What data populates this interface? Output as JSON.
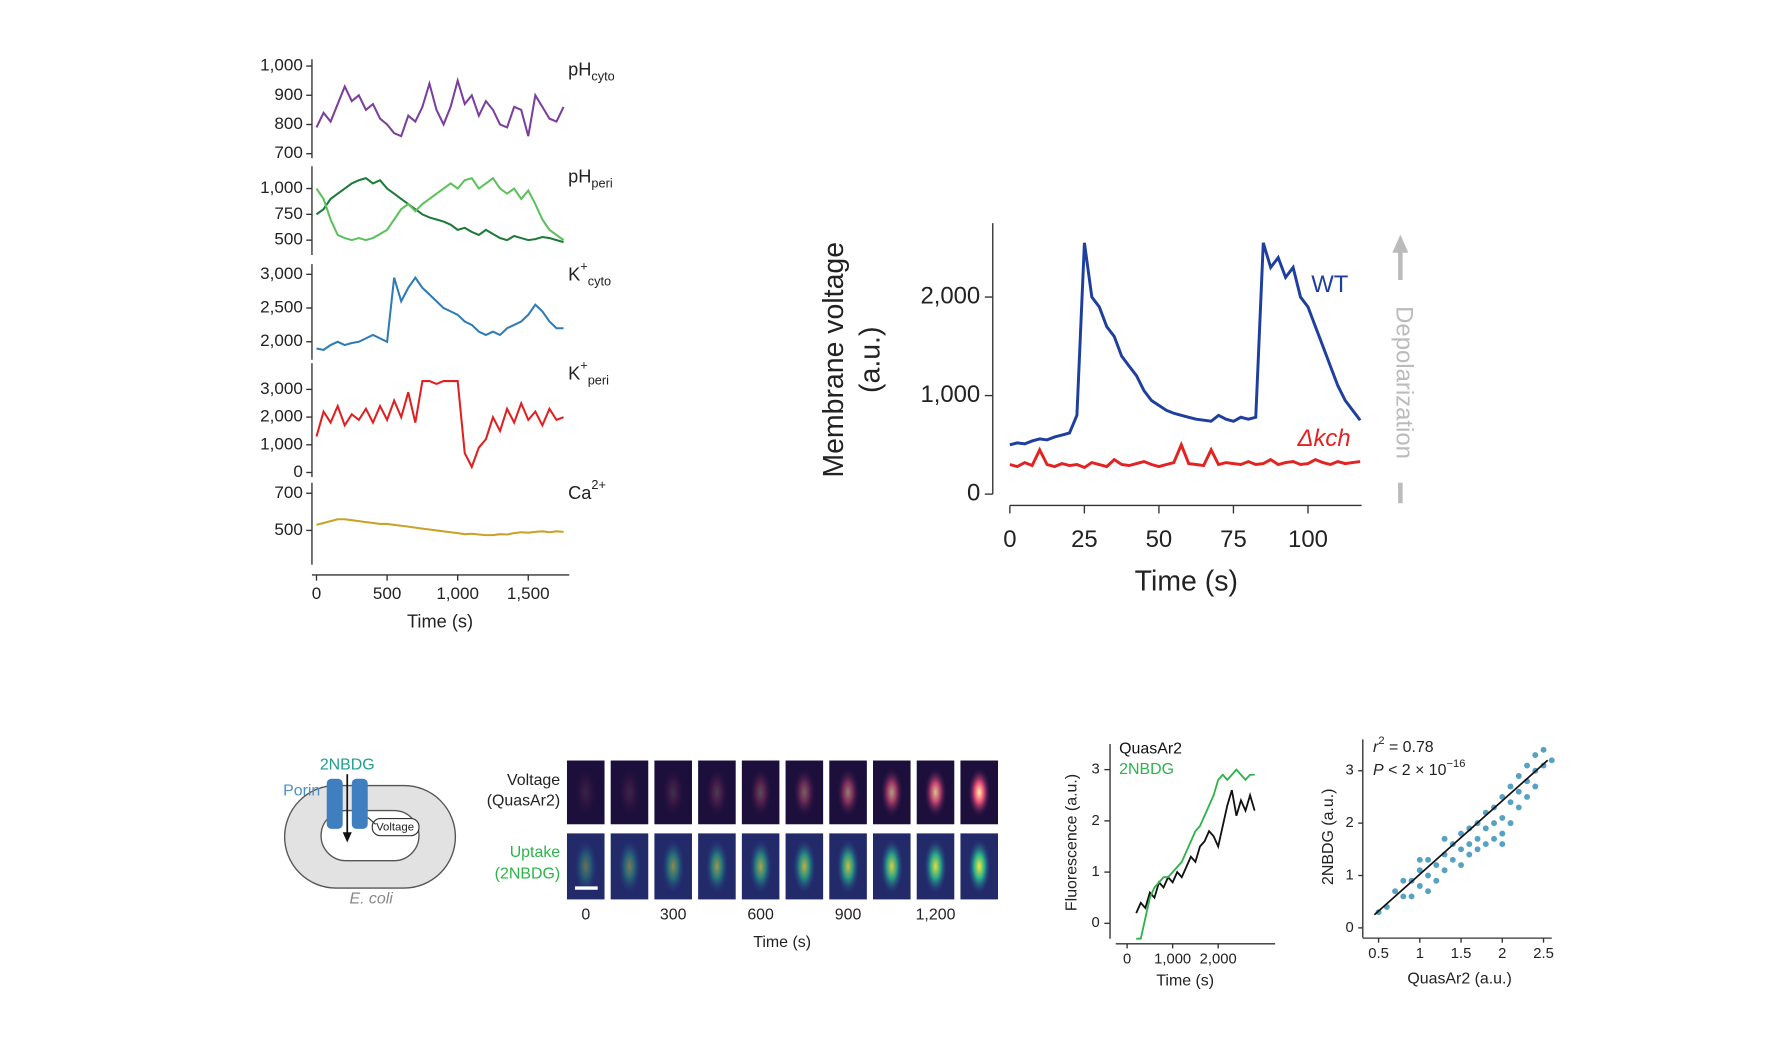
{
  "chart_data": [
    {
      "type": "line",
      "xlabel": "Time (s)",
      "x": [
        0,
        50,
        100,
        150,
        200,
        250,
        300,
        350,
        400,
        450,
        500,
        550,
        600,
        650,
        700,
        750,
        800,
        850,
        900,
        950,
        1000,
        1050,
        1100,
        1150,
        1200,
        1250,
        1300,
        1350,
        1400,
        1450,
        1500,
        1550,
        1600,
        1650,
        1700,
        1750
      ],
      "xlim": [
        0,
        1750
      ],
      "xticks": [
        0,
        500,
        {
          "value": 1000,
          "label": "1,000"
        },
        {
          "value": 1500,
          "label": "1,500"
        }
      ],
      "panels": [
        {
          "label": "pH",
          "label_sub": "cyto",
          "ylim": [
            700,
            1000
          ],
          "yticks": [
            700,
            800,
            900,
            {
              "value": 1000,
              "label": "1,000"
            }
          ],
          "series": [
            {
              "color": "#7b3f9e",
              "values": [
                790,
                840,
                810,
                870,
                930,
                880,
                900,
                850,
                870,
                820,
                800,
                770,
                760,
                830,
                810,
                860,
                940,
                850,
                800,
                860,
                950,
                870,
                900,
                830,
                880,
                850,
                800,
                790,
                860,
                850,
                760,
                900,
                860,
                820,
                810,
                860
              ]
            }
          ]
        },
        {
          "label": "pH",
          "label_sub": "peri",
          "ylim": [
            400,
            1150
          ],
          "yticks": [
            500,
            750,
            {
              "value": 1000,
              "label": "1,000"
            }
          ],
          "series": [
            {
              "color": "#1e7a3a",
              "values": [
                750,
                800,
                900,
                950,
                1000,
                1050,
                1080,
                1100,
                1050,
                1080,
                1000,
                950,
                900,
                850,
                800,
                750,
                720,
                700,
                680,
                650,
                600,
                620,
                580,
                550,
                600,
                560,
                520,
                500,
                540,
                520,
                500,
                510,
                530,
                520,
                500,
                480
              ]
            },
            {
              "color": "#5cc15c",
              "values": [
                1000,
                900,
                700,
                550,
                520,
                500,
                520,
                500,
                520,
                560,
                600,
                700,
                800,
                850,
                780,
                850,
                900,
                950,
                1000,
                1050,
                1000,
                1080,
                1100,
                1000,
                1050,
                1100,
                1000,
                950,
                1000,
                900,
                980,
                850,
                700,
                600,
                550,
                500
              ]
            }
          ]
        },
        {
          "label": "K",
          "label_sup": "+",
          "label_sub": "cyto",
          "ylim": [
            1800,
            3050
          ],
          "yticks": [
            {
              "value": 2000,
              "label": "2,000"
            },
            {
              "value": 2500,
              "label": "2,500"
            },
            {
              "value": 3000,
              "label": "3,000"
            }
          ],
          "series": [
            {
              "color": "#2f7bb5",
              "values": [
                1900,
                1880,
                1950,
                2000,
                1950,
                1980,
                2000,
                2050,
                2100,
                2050,
                2000,
                2950,
                2600,
                2800,
                2950,
                2800,
                2700,
                2600,
                2500,
                2450,
                2400,
                2300,
                2250,
                2150,
                2100,
                2150,
                2100,
                2200,
                2250,
                2300,
                2400,
                2550,
                2450,
                2300,
                2200,
                2200
              ]
            }
          ]
        },
        {
          "label": "K",
          "label_sup": "+",
          "label_sub": "peri",
          "ylim": [
            0,
            3700
          ],
          "yticks": [
            0,
            {
              "value": 1000,
              "label": "1,000"
            },
            {
              "value": 2000,
              "label": "2,000"
            },
            {
              "value": 3000,
              "label": "3,000"
            }
          ],
          "series": [
            {
              "color": "#e02020",
              "values": [
                1300,
                2200,
                1800,
                2400,
                1700,
                2100,
                1900,
                2300,
                1800,
                2400,
                1900,
                2600,
                2000,
                2900,
                1800,
                3300,
                3300,
                3200,
                3300,
                3300,
                3300,
                700,
                200,
                900,
                1200,
                2000,
                1500,
                2300,
                1800,
                2500,
                1900,
                2200,
                1700,
                2300,
                1900,
                2000
              ]
            }
          ]
        },
        {
          "label": "Ca",
          "label_sup": "2+",
          "ylim": [
            340,
            720
          ],
          "yticks": [
            500,
            700
          ],
          "series": [
            {
              "color": "#c9a227",
              "values": [
                530,
                540,
                550,
                560,
                560,
                555,
                550,
                545,
                540,
                535,
                535,
                530,
                525,
                520,
                515,
                510,
                505,
                500,
                495,
                490,
                485,
                480,
                482,
                478,
                475,
                475,
                480,
                478,
                485,
                490,
                488,
                492,
                495,
                490,
                495,
                492
              ]
            }
          ]
        }
      ]
    },
    {
      "type": "line",
      "xlabel": "Time (s)",
      "ylabel": [
        "Membrane voltage",
        "(a.u.)"
      ],
      "annotation": "Depolarization",
      "x": [
        0,
        2.5,
        5,
        7.5,
        10,
        12.5,
        15,
        17.5,
        20,
        22.5,
        25,
        27.5,
        30,
        32.5,
        35,
        37.5,
        40,
        42.5,
        45,
        47.5,
        50,
        52.5,
        55,
        57.5,
        60,
        62.5,
        65,
        67.5,
        70,
        72.5,
        75,
        77.5,
        80,
        82.5,
        85,
        87.5,
        90,
        92.5,
        95,
        97.5,
        100,
        102.5,
        105,
        107.5,
        110,
        112.5,
        115,
        117.5
      ],
      "xlim": [
        0,
        118
      ],
      "xticks": [
        0,
        25,
        50,
        75,
        100
      ],
      "ylim": [
        0,
        2750
      ],
      "yticks": [
        0,
        {
          "value": 1000,
          "label": "1,000"
        },
        {
          "value": 2000,
          "label": "2,000"
        }
      ],
      "series": [
        {
          "name": "WT",
          "color": "#1f3f9e",
          "values": [
            500,
            520,
            510,
            540,
            560,
            550,
            580,
            600,
            620,
            800,
            2550,
            2000,
            1900,
            1700,
            1600,
            1400,
            1300,
            1200,
            1050,
            950,
            900,
            850,
            820,
            800,
            780,
            760,
            750,
            740,
            800,
            760,
            740,
            780,
            760,
            780,
            2550,
            2300,
            2400,
            2200,
            2300,
            2000,
            1900,
            1700,
            1500,
            1300,
            1100,
            950,
            850,
            750
          ]
        },
        {
          "name": "Δkch",
          "color": "#e32222",
          "values": [
            300,
            280,
            320,
            290,
            450,
            300,
            280,
            310,
            290,
            300,
            270,
            320,
            300,
            280,
            350,
            300,
            290,
            310,
            330,
            300,
            280,
            300,
            320,
            500,
            310,
            300,
            290,
            450,
            300,
            320,
            310,
            300,
            330,
            300,
            310,
            350,
            300,
            320,
            330,
            300,
            310,
            350,
            320,
            300,
            330,
            310,
            320,
            330
          ]
        }
      ]
    },
    {
      "type": "line",
      "xlabel": "Time (s)",
      "ylabel": "Fluorescence (a.u.)",
      "x": [
        200,
        300,
        400,
        500,
        600,
        700,
        800,
        900,
        1000,
        1100,
        1200,
        1300,
        1400,
        1500,
        1600,
        1700,
        1800,
        1900,
        2000,
        2100,
        2200,
        2300,
        2400,
        2500,
        2600,
        2700,
        2800
      ],
      "xlim": [
        -250,
        3250
      ],
      "xticks": [
        0,
        {
          "value": 1000,
          "label": "1,000"
        },
        {
          "value": 2000,
          "label": "2,000"
        }
      ],
      "ylim": [
        -0.3,
        3.5
      ],
      "yticks": [
        0,
        1,
        2,
        3
      ],
      "series": [
        {
          "name": "QuasAr2",
          "color": "#111111",
          "values": [
            0.2,
            0.4,
            0.3,
            0.6,
            0.5,
            0.8,
            0.7,
            0.9,
            0.8,
            1.0,
            0.9,
            1.1,
            1.3,
            1.2,
            1.5,
            1.6,
            1.8,
            1.7,
            1.5,
            1.9,
            2.3,
            2.6,
            2.1,
            2.4,
            2.2,
            2.5,
            2.2
          ]
        },
        {
          "name": "2NBDG",
          "color": "#2db34a",
          "values": [
            -0.3,
            -0.3,
            0.1,
            0.5,
            0.7,
            0.8,
            0.9,
            0.9,
            1.0,
            1.1,
            1.2,
            1.4,
            1.6,
            1.8,
            1.9,
            2.1,
            2.3,
            2.5,
            2.8,
            2.9,
            2.8,
            2.9,
            3.0,
            2.9,
            2.8,
            2.9,
            2.9
          ]
        }
      ]
    },
    {
      "type": "scatter",
      "xlabel": "QuasAr2 (a.u.)",
      "ylabel": "2NBDG (a.u.)",
      "color": "#3a90b8",
      "r2": {
        "symbol": "r",
        "sup": "2",
        "text": " = 0.78"
      },
      "p": {
        "symbol": "P",
        "text": " < 2 × 10",
        "sup": "−16"
      },
      "xlim": [
        0.35,
        2.6
      ],
      "xticks": [
        0.5,
        1,
        1.5,
        2,
        2.5
      ],
      "ylim": [
        -0.1,
        3.6
      ],
      "yticks": [
        0,
        1,
        2,
        3
      ],
      "x": [
        0.5,
        0.6,
        0.7,
        0.8,
        0.9,
        0.9,
        1.0,
        1.0,
        1.1,
        1.1,
        1.2,
        1.2,
        1.3,
        1.3,
        1.4,
        1.4,
        1.5,
        1.5,
        1.5,
        1.6,
        1.6,
        1.6,
        1.7,
        1.7,
        1.7,
        1.8,
        1.8,
        1.8,
        1.9,
        1.9,
        1.9,
        2.0,
        2.0,
        2.0,
        2.0,
        2.1,
        2.1,
        2.1,
        2.2,
        2.2,
        2.2,
        2.3,
        2.3,
        2.3,
        2.4,
        2.4,
        2.4,
        2.5,
        2.5,
        1.1,
        0.8,
        1.3,
        1.0,
        2.6
      ],
      "y": [
        0.3,
        0.4,
        0.7,
        0.6,
        0.9,
        0.6,
        0.8,
        1.1,
        1.0,
        1.3,
        1.2,
        0.9,
        1.4,
        1.1,
        1.3,
        1.6,
        1.5,
        1.8,
        1.2,
        1.6,
        1.9,
        1.4,
        1.5,
        2.0,
        1.7,
        1.6,
        2.2,
        1.9,
        1.7,
        2.3,
        2.0,
        1.8,
        2.5,
        2.1,
        1.6,
        2.4,
        2.7,
        2.0,
        2.6,
        2.9,
        2.3,
        2.8,
        3.1,
        2.5,
        3.0,
        3.3,
        2.7,
        3.1,
        3.4,
        0.7,
        0.9,
        1.7,
        1.3,
        3.2
      ],
      "fit": {
        "color": "#111111",
        "x": [
          0.45,
          2.55
        ],
        "y": [
          0.25,
          3.2
        ]
      }
    }
  ],
  "diagram": {
    "molecule": "2NBDG",
    "porin": "Porin",
    "sensor": "Voltage",
    "organism": "E. coli"
  },
  "image_strip": {
    "rows": [
      [
        "Voltage",
        "(QuasAr2)"
      ],
      [
        "Uptake",
        "(2NBDG)"
      ]
    ],
    "ticks": [
      "0",
      "300",
      "600",
      "900",
      "1,200"
    ],
    "xlabel": "Time (s)"
  }
}
